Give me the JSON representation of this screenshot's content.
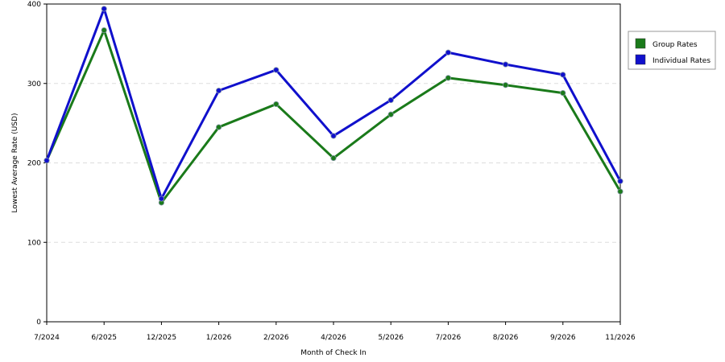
{
  "chart_data": {
    "type": "line",
    "title": "",
    "xlabel": "Month of Check In",
    "ylabel": "Lowest Average Rate (USD)",
    "categories": [
      "7/2024",
      "6/2025",
      "12/2025",
      "1/2026",
      "2/2026",
      "4/2026",
      "5/2026",
      "7/2026",
      "8/2026",
      "9/2026",
      "11/2026"
    ],
    "ylim": [
      0,
      400
    ],
    "yticks": [
      "0",
      "100",
      "200",
      "300",
      "400"
    ],
    "grid": "horizontal dashed",
    "legend_position": "right",
    "series": [
      {
        "name": "Group Rates",
        "color": "#1a7a1a",
        "values": [
          203,
          367,
          150,
          245,
          274,
          206,
          261,
          307,
          298,
          288,
          164
        ]
      },
      {
        "name": "Individual Rates",
        "color": "#1010cc",
        "values": [
          203,
          394,
          155,
          291,
          317,
          234,
          279,
          339,
          324,
          311,
          177
        ]
      }
    ]
  }
}
